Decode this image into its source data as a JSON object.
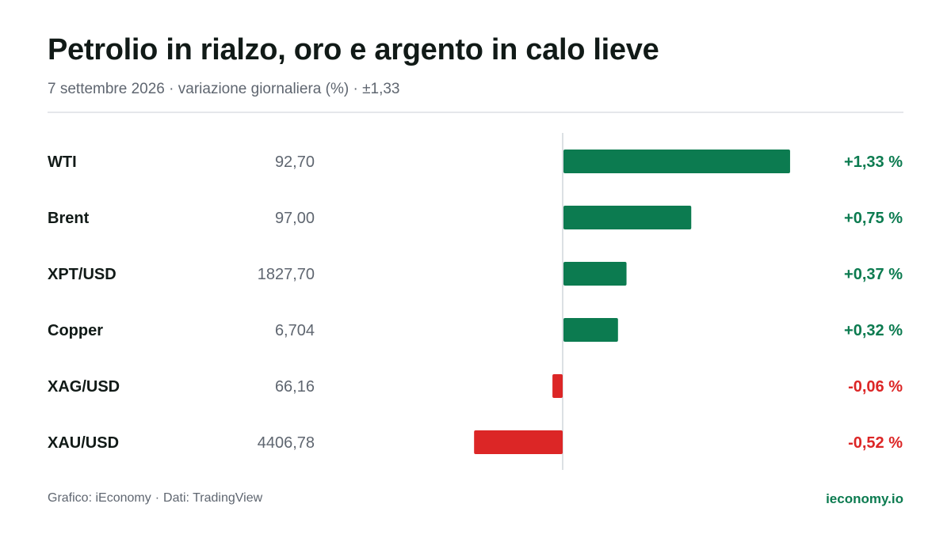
{
  "header": {
    "title": "Petrolio in rialzo, oro e argento in calo lieve",
    "subtitle": "7 settembre 2026 · variazione giornaliera (%) · ±1,33"
  },
  "footer": {
    "grafico_label": "Grafico: iEconomy",
    "separator": "·",
    "dati_label": "Dati: TradingView",
    "site": "ieconomy.io"
  },
  "colors": {
    "positive": "#0c7b50",
    "negative": "#dc2626",
    "axis": "#d1d5db",
    "label": "#111a17",
    "price": "#5f6670"
  },
  "chart_data": {
    "type": "bar",
    "orientation": "horizontal",
    "categories": [
      "WTI",
      "Brent",
      "XPT/USD",
      "Copper",
      "XAG/USD",
      "XAU/USD"
    ],
    "prices": [
      "92,70",
      "97,00",
      "1827,70",
      "6,704",
      "66,16",
      "4406,78"
    ],
    "values": [
      1.33,
      0.75,
      0.37,
      0.32,
      -0.06,
      -0.52
    ],
    "value_labels": [
      "+1,33 %",
      "+0,75 %",
      "+0,37 %",
      "+0,32 %",
      "-0,06 %",
      "-0,52 %"
    ],
    "xlim": [
      -1.4,
      1.4
    ],
    "unit": "%",
    "grid": false,
    "legend": "none"
  }
}
